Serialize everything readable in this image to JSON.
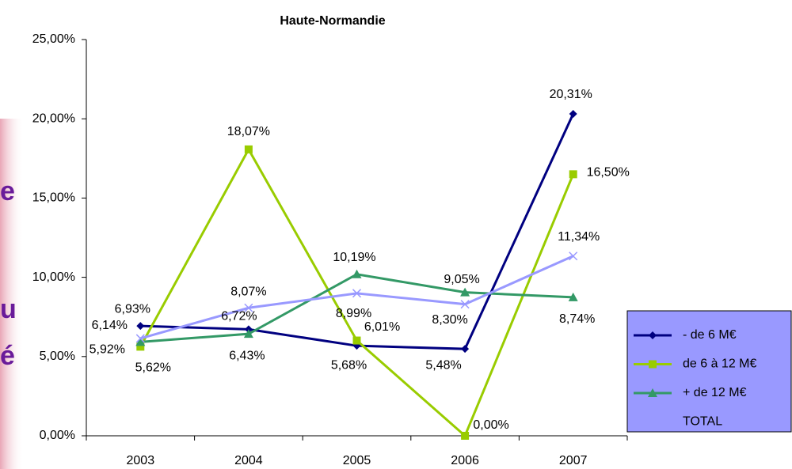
{
  "slide_text_fragments": [
    "e",
    "u",
    "é"
  ],
  "chart_data": {
    "type": "line",
    "title": "Haute-Normandie",
    "categories": [
      "2003",
      "2004",
      "2005",
      "2006",
      "2007"
    ],
    "ylim": [
      0,
      25
    ],
    "yticks": [
      {
        "value": 0,
        "label": "0,00%"
      },
      {
        "value": 5,
        "label": "5,00%"
      },
      {
        "value": 10,
        "label": "10,00%"
      },
      {
        "value": 15,
        "label": "15,00%"
      },
      {
        "value": 20,
        "label": "20,00%"
      },
      {
        "value": 25,
        "label": "25,00%"
      }
    ],
    "grid": false,
    "legend": "right",
    "series": [
      {
        "name": "- de 6 M€",
        "color": "#000080",
        "marker": "diamond",
        "values": [
          6.93,
          6.72,
          5.68,
          5.48,
          20.31
        ],
        "value_labels": [
          "6,93%",
          "6,72%",
          "5,68%",
          "5,48%",
          "20,31%"
        ]
      },
      {
        "name": "de 6 à 12 M€",
        "color": "#99cc00",
        "marker": "square",
        "values": [
          5.62,
          18.07,
          6.01,
          0.0,
          16.5
        ],
        "value_labels": [
          "5,62%",
          "18,07%",
          "6,01%",
          "0,00%",
          "16,50%"
        ]
      },
      {
        "name": "+ de 12 M€",
        "color": "#339966",
        "marker": "triangle",
        "values": [
          5.92,
          6.43,
          10.19,
          9.05,
          8.74
        ],
        "value_labels": [
          "5,92%",
          "6,43%",
          "10,19%",
          "9,05%",
          "8,74%"
        ]
      },
      {
        "name": "TOTAL",
        "color": "#9999ff",
        "marker": "x",
        "values": [
          6.14,
          8.07,
          8.99,
          8.3,
          11.34
        ],
        "value_labels": [
          "6,14%",
          "8,07%",
          "8,99%",
          "8,30%",
          "11,34%"
        ]
      }
    ]
  }
}
